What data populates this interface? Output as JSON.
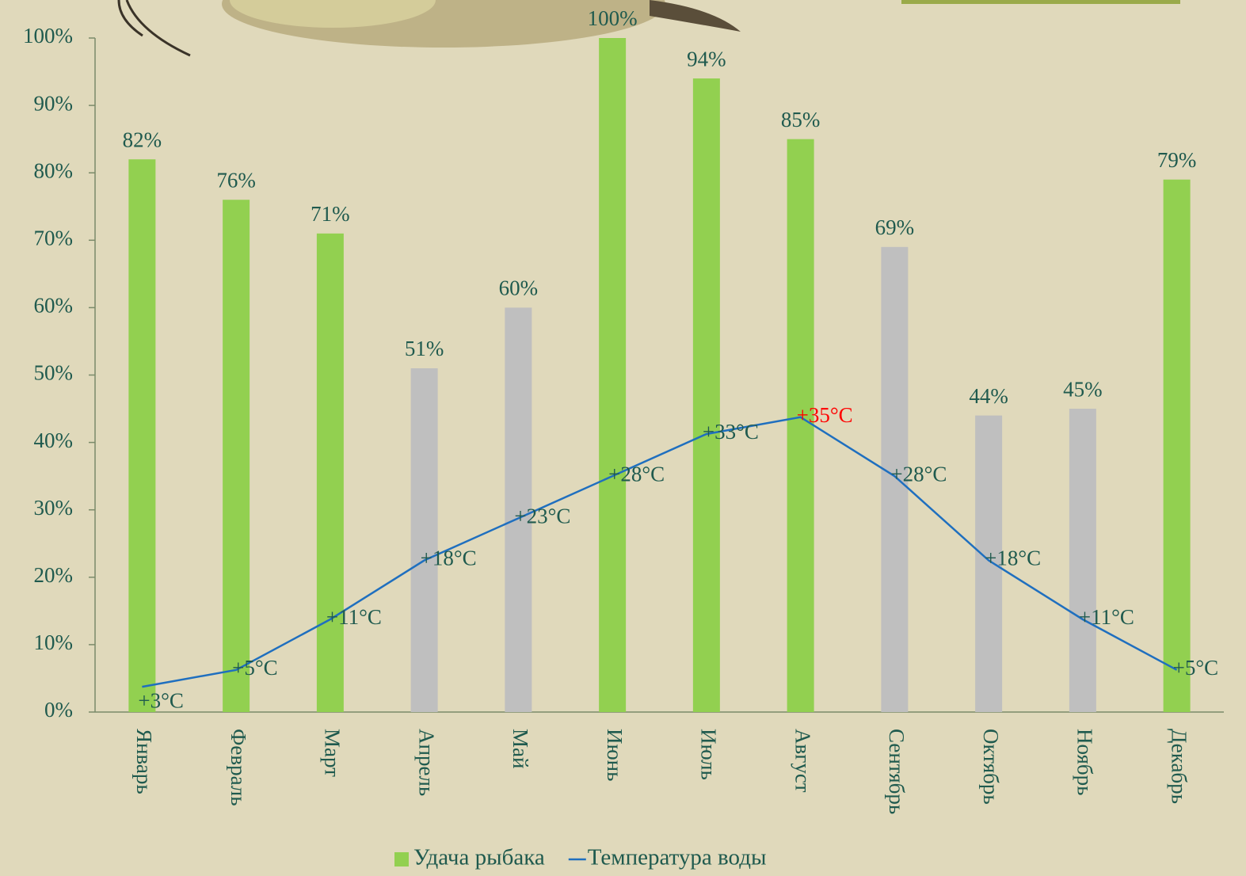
{
  "chart_data": {
    "type": "bar",
    "categories": [
      "Январь",
      "Февраль",
      "Март",
      "Апрель",
      "Май",
      "Июнь",
      "Июль",
      "Август",
      "Сентябрь",
      "Октябрь",
      "Ноябрь",
      "Декабрь"
    ],
    "series": [
      {
        "name": "Удача рыбака",
        "type": "bar",
        "color": "#92d050",
        "bar_colors": [
          "#92d050",
          "#92d050",
          "#92d050",
          "#bfbfbf",
          "#bfbfbf",
          "#92d050",
          "#92d050",
          "#92d050",
          "#bfbfbf",
          "#bfbfbf",
          "#bfbfbf",
          "#92d050"
        ],
        "values": [
          82,
          76,
          71,
          51,
          60,
          100,
          94,
          85,
          69,
          44,
          45,
          79
        ],
        "value_labels": [
          "82%",
          "76%",
          "71%",
          "51%",
          "60%",
          "100%",
          "94%",
          "85%",
          "69%",
          "44%",
          "45%",
          "79%"
        ]
      },
      {
        "name": "Температура воды",
        "type": "line",
        "color": "#1f6fbf",
        "axis": "y2",
        "values": [
          3,
          5,
          11,
          18,
          23,
          28,
          33,
          35,
          28,
          18,
          11,
          5
        ],
        "value_labels": [
          "+3°C",
          "+5°C",
          "+11°C",
          "+18°C",
          "+23°C",
          "+28°C",
          "+33°C",
          "+35°C",
          "+28°C",
          "+18°C",
          "+11°C",
          "+5°C"
        ],
        "value_label_colors": [
          "#1f5a4e",
          "#1f5a4e",
          "#1f5a4e",
          "#1f5a4e",
          "#1f5a4e",
          "#1f5a4e",
          "#1f5a4e",
          "#ff0000",
          "#1f5a4e",
          "#1f5a4e",
          "#1f5a4e",
          "#1f5a4e"
        ]
      }
    ],
    "ylim": [
      0,
      100
    ],
    "yticks": [
      {
        "value": 0,
        "label": "0%"
      },
      {
        "value": 10,
        "label": "10%"
      },
      {
        "value": 20,
        "label": "20%"
      },
      {
        "value": 30,
        "label": "30%"
      },
      {
        "value": 40,
        "label": "40%"
      },
      {
        "value": 50,
        "label": "50%"
      },
      {
        "value": 60,
        "label": "60%"
      },
      {
        "value": 70,
        "label": "70%"
      },
      {
        "value": 80,
        "label": "80%"
      },
      {
        "value": 90,
        "label": "90%"
      },
      {
        "value": 100,
        "label": "100%"
      }
    ],
    "y2lim": [
      0,
      80
    ],
    "legend": "bottom"
  }
}
